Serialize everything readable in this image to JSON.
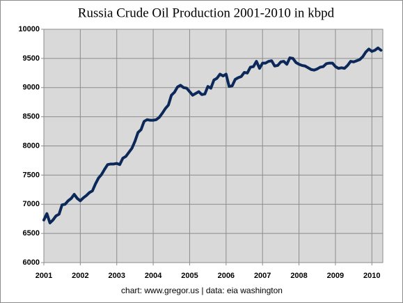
{
  "chart_data": {
    "type": "line",
    "title": "Russia Crude Oil Production 2001-2010 in kbpd",
    "annotation": "chart: www.gregor.us  |  data: eia washington",
    "x": [
      2001.0,
      2001.083,
      2001.167,
      2001.25,
      2001.333,
      2001.417,
      2001.5,
      2001.583,
      2001.667,
      2001.75,
      2001.833,
      2001.917,
      2002.0,
      2002.083,
      2002.167,
      2002.25,
      2002.333,
      2002.417,
      2002.5,
      2002.583,
      2002.667,
      2002.75,
      2002.833,
      2002.917,
      2003.0,
      2003.083,
      2003.167,
      2003.25,
      2003.333,
      2003.417,
      2003.5,
      2003.583,
      2003.667,
      2003.75,
      2003.833,
      2003.917,
      2004.0,
      2004.083,
      2004.167,
      2004.25,
      2004.333,
      2004.417,
      2004.5,
      2004.583,
      2004.667,
      2004.75,
      2004.833,
      2004.917,
      2005.0,
      2005.083,
      2005.167,
      2005.25,
      2005.333,
      2005.417,
      2005.5,
      2005.583,
      2005.667,
      2005.75,
      2005.833,
      2005.917,
      2006.0,
      2006.083,
      2006.167,
      2006.25,
      2006.333,
      2006.417,
      2006.5,
      2006.583,
      2006.667,
      2006.75,
      2006.833,
      2006.917,
      2007.0,
      2007.083,
      2007.167,
      2007.25,
      2007.333,
      2007.417,
      2007.5,
      2007.583,
      2007.667,
      2007.75,
      2007.833,
      2007.917,
      2008.0,
      2008.083,
      2008.167,
      2008.25,
      2008.333,
      2008.417,
      2008.5,
      2008.583,
      2008.667,
      2008.75,
      2008.833,
      2008.917,
      2009.0,
      2009.083,
      2009.167,
      2009.25,
      2009.333,
      2009.417,
      2009.5,
      2009.583,
      2009.667,
      2009.75,
      2009.833,
      2009.917,
      2010.0,
      2010.083,
      2010.167,
      2010.25
    ],
    "series": [
      {
        "name": "Russia Crude Oil Production",
        "color": "#0c2859",
        "values": [
          6730,
          6840,
          6680,
          6730,
          6800,
          6830,
          6990,
          7000,
          7060,
          7100,
          7170,
          7100,
          7060,
          7110,
          7150,
          7200,
          7230,
          7350,
          7450,
          7510,
          7600,
          7680,
          7690,
          7690,
          7700,
          7680,
          7790,
          7820,
          7890,
          7960,
          8080,
          8230,
          8280,
          8420,
          8450,
          8440,
          8440,
          8450,
          8490,
          8560,
          8640,
          8700,
          8870,
          8920,
          9010,
          9040,
          9000,
          8990,
          8930,
          8870,
          8900,
          8930,
          8880,
          8890,
          9020,
          8990,
          9130,
          9160,
          9230,
          9200,
          9230,
          9020,
          9030,
          9140,
          9170,
          9190,
          9260,
          9250,
          9350,
          9360,
          9450,
          9330,
          9420,
          9420,
          9450,
          9460,
          9370,
          9380,
          9440,
          9450,
          9400,
          9510,
          9500,
          9430,
          9400,
          9380,
          9370,
          9340,
          9310,
          9300,
          9320,
          9350,
          9360,
          9410,
          9420,
          9420,
          9360,
          9330,
          9340,
          9330,
          9380,
          9450,
          9440,
          9460,
          9480,
          9530,
          9610,
          9660,
          9620,
          9640,
          9680,
          9640
        ]
      }
    ],
    "xlim": [
      2001,
      2010.3
    ],
    "xticks": [
      2001,
      2002,
      2003,
      2004,
      2005,
      2006,
      2007,
      2008,
      2009,
      2010
    ],
    "ylim": [
      6000,
      10000
    ],
    "yticks": [
      6000,
      6500,
      7000,
      7500,
      8000,
      8500,
      9000,
      9500,
      10000
    ],
    "grid": true
  }
}
